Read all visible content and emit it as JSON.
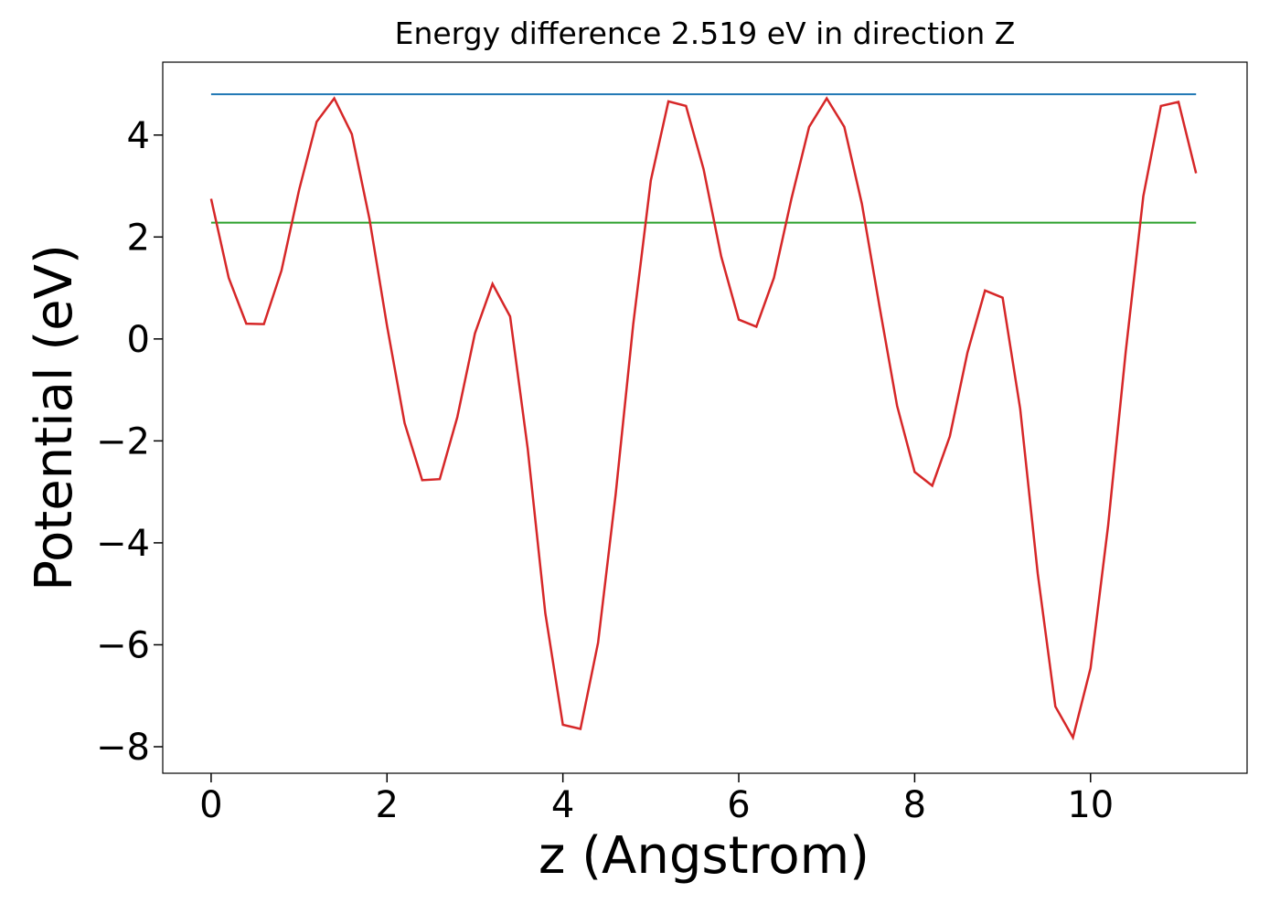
{
  "chart_data": {
    "type": "line",
    "title": "Energy difference 2.519 eV in direction Z",
    "xlabel": "z (Angstrom)",
    "ylabel": "Potential (eV)",
    "xlim": [
      -0.55,
      11.78
    ],
    "ylim": [
      -8.52,
      5.43
    ],
    "xticks": [
      0,
      2,
      4,
      6,
      8,
      10
    ],
    "yticks": [
      {
        "value": -8,
        "label": "−8"
      },
      {
        "value": -6,
        "label": "−6"
      },
      {
        "value": -4,
        "label": "−4"
      },
      {
        "value": -2,
        "label": "−2"
      },
      0,
      2,
      4
    ],
    "grid": false,
    "series": [
      {
        "color": "#d62728",
        "x": [
          0,
          0.2,
          0.4,
          0.6,
          0.8,
          1.0,
          1.2,
          1.4,
          1.6,
          1.8,
          2.0,
          2.2,
          2.4,
          2.6,
          2.8,
          3.0,
          3.2,
          3.4,
          3.6,
          3.8,
          4.0,
          4.2,
          4.4,
          4.6,
          4.8,
          5.0,
          5.2,
          5.4,
          5.6,
          5.8,
          6.0,
          6.2,
          6.4,
          6.6,
          6.8,
          7.0,
          7.2,
          7.4,
          7.6,
          7.8,
          8.0,
          8.2,
          8.4,
          8.6,
          8.8,
          9.0,
          9.2,
          9.4,
          9.6,
          9.8,
          10.0,
          10.2,
          10.4,
          10.6,
          10.8,
          11.0,
          11.2
        ],
        "values": [
          2.75,
          1.2,
          0.3,
          0.29,
          1.34,
          2.92,
          4.26,
          4.72,
          4.02,
          2.36,
          0.26,
          -1.65,
          -2.77,
          -2.75,
          -1.53,
          0.11,
          1.08,
          0.44,
          -2.15,
          -5.38,
          -7.57,
          -7.65,
          -5.96,
          -3.05,
          0.29,
          3.11,
          4.66,
          4.57,
          3.33,
          1.62,
          0.38,
          0.24,
          1.2,
          2.76,
          4.16,
          4.72,
          4.16,
          2.65,
          0.64,
          -1.31,
          -2.61,
          -2.88,
          -1.91,
          -0.27,
          0.95,
          0.81,
          -1.37,
          -4.61,
          -7.21,
          -7.82,
          -6.46,
          -3.66,
          -0.25,
          2.8,
          4.57,
          4.65,
          3.25
        ]
      },
      {
        "color": "#1f77b4",
        "x": [
          0,
          11.2
        ],
        "values": [
          4.8,
          4.8
        ]
      },
      {
        "color": "#2ca02c",
        "x": [
          0,
          11.2
        ],
        "values": [
          2.28,
          2.28
        ]
      }
    ]
  }
}
